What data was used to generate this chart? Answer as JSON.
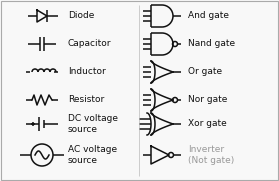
{
  "background_color": "#f8f8f8",
  "border_color": "#aaaaaa",
  "symbol_color": "#111111",
  "text_color": "#111111",
  "gray_text_color": "#999999",
  "left_labels": [
    "Diode",
    "Capacitor",
    "Inductor",
    "Resistor",
    "DC voltage\nsource",
    "AC voltage\nsource"
  ],
  "right_labels": [
    "And gate",
    "Nand gate",
    "Or gate",
    "Nor gate",
    "Xor gate",
    "Inverter\n(Not gate)"
  ],
  "figsize": [
    2.79,
    1.81
  ],
  "dpi": 100,
  "lw": 1.1
}
